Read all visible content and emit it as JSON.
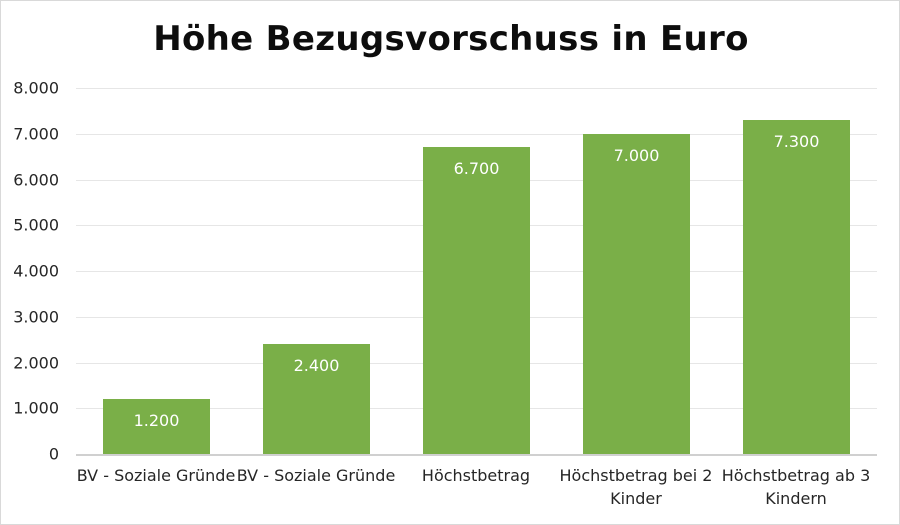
{
  "chart_data": {
    "type": "bar",
    "title": "Höhe Bezugsvorschuss in Euro",
    "xlabel": "",
    "ylabel": "",
    "categories": [
      "BV - Soziale Gründe",
      "BV - Soziale Gründe",
      "Höchstbetrag",
      "Höchstbetrag bei 2 Kinder",
      "Höchstbetrag ab 3 Kindern"
    ],
    "values": [
      1200,
      2400,
      6700,
      7000,
      7300
    ],
    "data_labels": [
      "1.200",
      "2.400",
      "6.700",
      "7.000",
      "7.300"
    ],
    "ylim": [
      0,
      8000
    ],
    "y_ticks": [
      "0",
      "1.000",
      "2.000",
      "3.000",
      "4.000",
      "5.000",
      "6.000",
      "7.000",
      "8.000"
    ],
    "grid": true,
    "legend": "none",
    "bar_color": "#7aaf48"
  },
  "x_labels": [
    {
      "line1": "BV - Soziale Gründe",
      "line2": ""
    },
    {
      "line1": "BV - Soziale Gründe",
      "line2": ""
    },
    {
      "line1": "Höchstbetrag",
      "line2": ""
    },
    {
      "line1": "Höchstbetrag bei 2",
      "line2": "Kinder"
    },
    {
      "line1": "Höchstbetrag ab 3",
      "line2": "Kindern"
    }
  ]
}
